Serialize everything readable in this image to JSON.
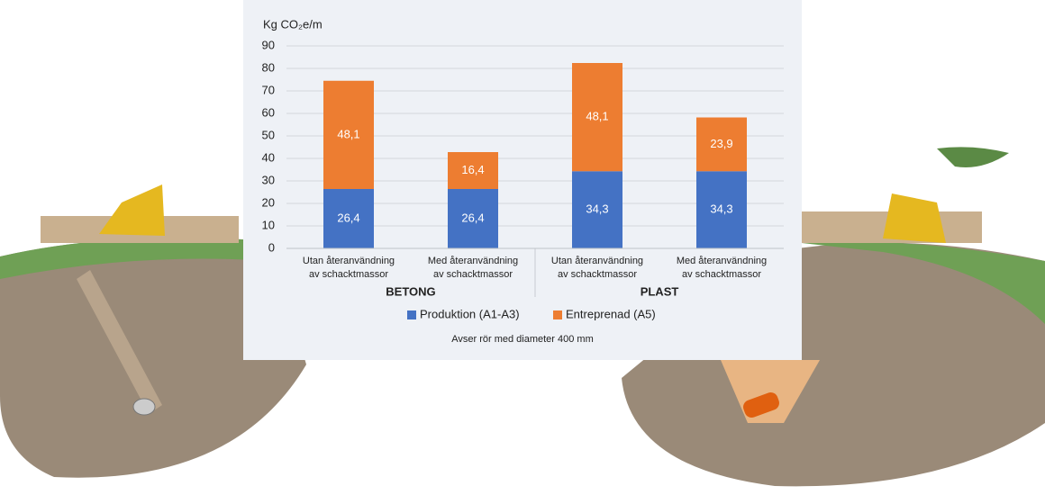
{
  "chart_data": {
    "type": "bar",
    "stacked": true,
    "ylabel": "Kg CO₂e/m",
    "categories": [
      [
        "Utan återanvändning",
        "av schacktmassor"
      ],
      [
        "Med återanvändning",
        "av schacktmassor"
      ],
      [
        "Utan återanvändning",
        "av schacktmassor"
      ],
      [
        "Med återanvändning",
        "av schacktmassor"
      ]
    ],
    "groups": [
      "BETONG",
      "PLAST"
    ],
    "series": [
      {
        "name": "Produktion (A1-A3)",
        "color": "#4472c4",
        "values": [
          26.4,
          26.4,
          34.3,
          34.3
        ],
        "value_labels": [
          "26,4",
          "26,4",
          "34,3",
          "34,3"
        ]
      },
      {
        "name": "Entreprenad (A5)",
        "color": "#ed7d31",
        "values": [
          48.1,
          16.4,
          48.1,
          23.9
        ],
        "value_labels": [
          "48,1",
          "16,4",
          "48,1",
          "23,9"
        ]
      }
    ],
    "ylim": [
      0,
      90
    ],
    "yticks": [
      0,
      10,
      20,
      30,
      40,
      50,
      60,
      70,
      80,
      90
    ],
    "grid": true,
    "legend": "bottom",
    "note": "Avser rör med diameter 400 mm"
  }
}
